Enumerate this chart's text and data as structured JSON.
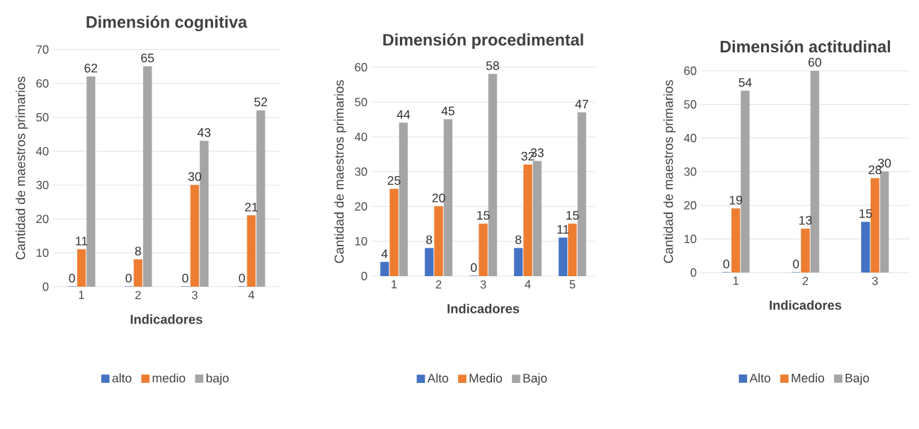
{
  "chart_data": [
    {
      "type": "bar",
      "title": "Dimensión cognitiva",
      "xlabel": "Indicadores",
      "ylabel": "Cantidad de maestros primarios",
      "categories": [
        "1",
        "2",
        "3",
        "4"
      ],
      "series": [
        {
          "name": "alto",
          "color": "#4472c4",
          "values": [
            0,
            0,
            0,
            0
          ]
        },
        {
          "name": "medio",
          "color": "#ed7d31",
          "values": [
            11,
            8,
            30,
            21
          ]
        },
        {
          "name": "bajo",
          "color": "#a5a5a5",
          "values": [
            62,
            65,
            43,
            52
          ]
        }
      ],
      "ylim": [
        0,
        70
      ],
      "yticks": [
        0,
        10,
        20,
        30,
        40,
        50,
        60,
        70
      ],
      "grid": "y",
      "legend": "bottom",
      "data_labels": true
    },
    {
      "type": "bar",
      "title": "Dimensión procedimental",
      "xlabel": "Indicadores",
      "ylabel": "Cantidad de maestros primarios",
      "categories": [
        "1",
        "2",
        "3",
        "4",
        "5"
      ],
      "series": [
        {
          "name": "Alto",
          "color": "#4472c4",
          "values": [
            4,
            8,
            0,
            8,
            11
          ]
        },
        {
          "name": "Medio",
          "color": "#ed7d31",
          "values": [
            25,
            20,
            15,
            32,
            15
          ]
        },
        {
          "name": "Bajo",
          "color": "#a5a5a5",
          "values": [
            44,
            45,
            58,
            33,
            47
          ]
        }
      ],
      "ylim": [
        0,
        60
      ],
      "yticks": [
        0,
        10,
        20,
        30,
        40,
        50,
        60
      ],
      "grid": "y",
      "legend": "bottom",
      "data_labels": true
    },
    {
      "type": "bar",
      "title": "Dimensión actitudinal",
      "xlabel": "Indicadores",
      "ylabel": "Cantidad de maestros primarios",
      "categories": [
        "1",
        "2",
        "3"
      ],
      "series": [
        {
          "name": "Alto",
          "color": "#4472c4",
          "values": [
            0,
            0,
            15
          ]
        },
        {
          "name": "Medio",
          "color": "#ed7d31",
          "values": [
            19,
            13,
            28
          ]
        },
        {
          "name": "Bajo",
          "color": "#a5a5a5",
          "values": [
            54,
            60,
            30
          ]
        }
      ],
      "ylim": [
        0,
        60
      ],
      "yticks": [
        0,
        10,
        20,
        30,
        40,
        50,
        60
      ],
      "grid": "y",
      "legend": "bottom",
      "data_labels": true
    }
  ]
}
